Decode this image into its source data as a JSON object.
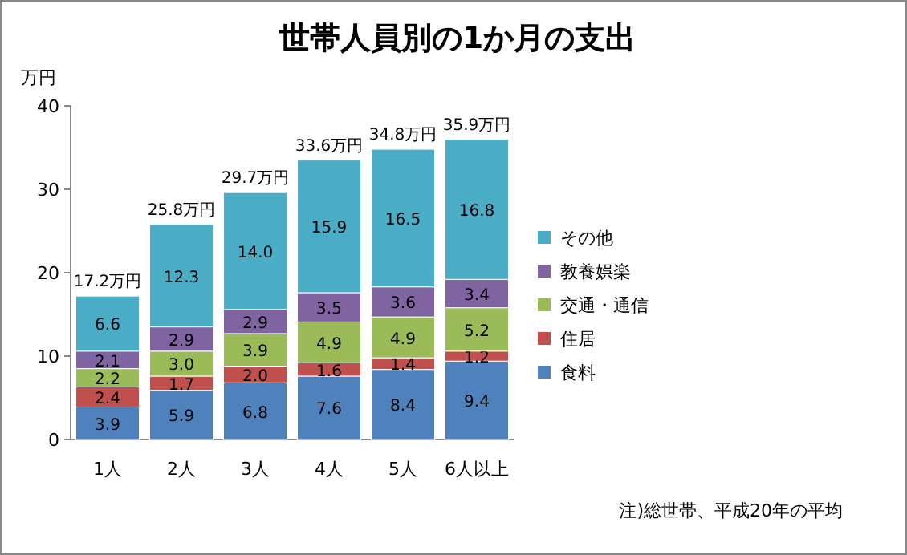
{
  "chart_data": {
    "type": "bar",
    "title": "世帯人員別の1か月の支出",
    "ylabel": "万円",
    "stacked": true,
    "categories": [
      "1人",
      "2人",
      "3人",
      "4人",
      "5人",
      "6人以上"
    ],
    "ylim": [
      0,
      40
    ],
    "yticks": [
      0,
      10,
      20,
      30,
      40
    ],
    "grid": false,
    "legend": "right",
    "series": [
      {
        "name": "食料",
        "color": "#4f81bd",
        "values": [
          3.9,
          5.9,
          6.8,
          7.6,
          8.4,
          9.4
        ],
        "value_labels": [
          "3.9",
          "5.9",
          "6.8",
          "7.6",
          "8.4",
          "9.4"
        ]
      },
      {
        "name": "住居",
        "color": "#c0504d",
        "values": [
          2.4,
          1.7,
          2.0,
          1.6,
          1.4,
          1.2
        ],
        "value_labels": [
          "2.4",
          "1.7",
          "2.0",
          "1.6",
          "1.4",
          "1.2"
        ]
      },
      {
        "name": "交通・通信",
        "color": "#9bbb59",
        "values": [
          2.2,
          3.0,
          3.9,
          4.9,
          4.9,
          5.2
        ],
        "value_labels": [
          "2.2",
          "3.0",
          "3.9",
          "4.9",
          "4.9",
          "5.2"
        ]
      },
      {
        "name": "教養娯楽",
        "color": "#8064a2",
        "values": [
          2.1,
          2.9,
          2.9,
          3.5,
          3.6,
          3.4
        ],
        "value_labels": [
          "2.1",
          "2.9",
          "2.9",
          "3.5",
          "3.6",
          "3.4"
        ]
      },
      {
        "name": "その他",
        "color": "#4bacc6",
        "values": [
          6.6,
          12.3,
          14.0,
          15.9,
          16.5,
          16.8
        ],
        "value_labels": [
          "6.6",
          "12.3",
          "14.0",
          "15.9",
          "16.5",
          "16.8"
        ]
      }
    ],
    "totals": [
      "17.2万円",
      "25.8万円",
      "29.7万円",
      "33.6万円",
      "34.8万円",
      "35.9万円"
    ],
    "annotations": [
      "注)総世帯、平成20年の平均"
    ]
  }
}
